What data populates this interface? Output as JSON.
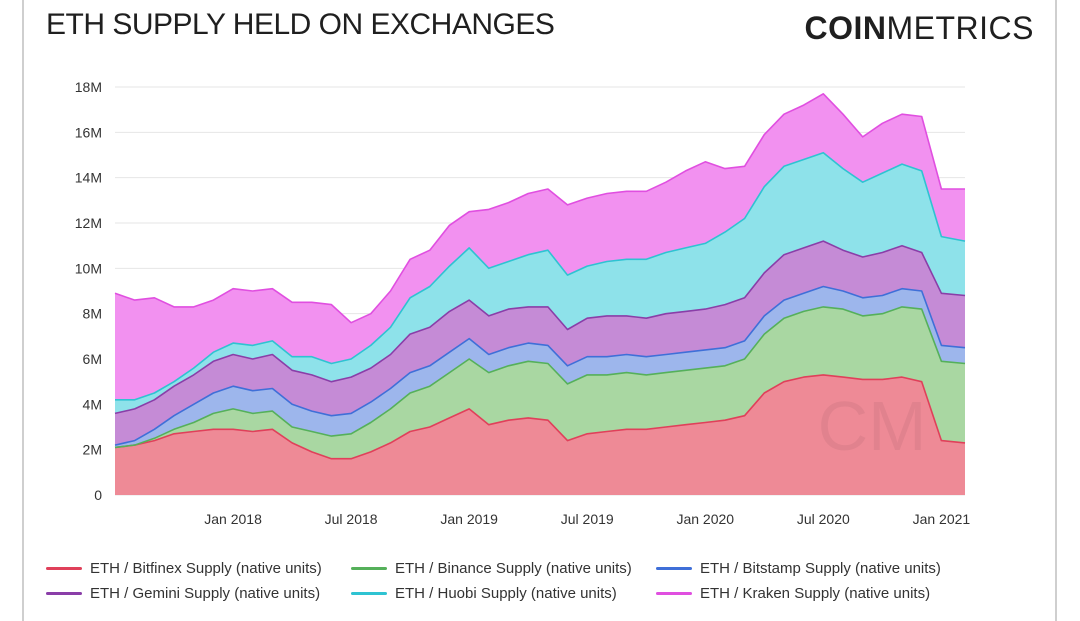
{
  "title": "ETH SUPPLY HELD ON EXCHANGES",
  "logo": {
    "bold": "COIN",
    "light": "METRICS"
  },
  "watermark": "CM",
  "chart_data": {
    "type": "area",
    "stacked": true,
    "title": "ETH SUPPLY HELD ON EXCHANGES",
    "xlabel": "",
    "ylabel": "",
    "ylim": [
      0,
      18
    ],
    "y_ticks": [
      "0",
      "2M",
      "4M",
      "6M",
      "8M",
      "10M",
      "12M",
      "14M",
      "16M",
      "18M"
    ],
    "x_tick_labels": [
      "Jan 2018",
      "Jul 2018",
      "Jan 2019",
      "Jul 2019",
      "Jan 2020",
      "Jul 2020",
      "Jan 2021"
    ],
    "x_tick_positions": [
      6,
      12,
      18,
      24,
      30,
      36,
      42
    ],
    "x_range": [
      0,
      43.2
    ],
    "x": [
      0,
      1,
      2,
      3,
      4,
      5,
      6,
      7,
      8,
      9,
      10,
      11,
      12,
      13,
      14,
      15,
      16,
      17,
      18,
      19,
      20,
      21,
      22,
      23,
      24,
      25,
      26,
      27,
      28,
      29,
      30,
      31,
      32,
      33,
      34,
      35,
      36,
      37,
      38,
      39,
      40,
      41,
      42,
      43.2
    ],
    "series": [
      {
        "name": "ETH / Bitfinex Supply (native units)",
        "color": "#e0405a",
        "fill": "#ee8a96",
        "values": [
          2.1,
          2.2,
          2.4,
          2.7,
          2.8,
          2.9,
          2.9,
          2.8,
          2.9,
          2.3,
          1.9,
          1.6,
          1.6,
          1.9,
          2.3,
          2.8,
          3.0,
          3.4,
          3.8,
          3.1,
          3.3,
          3.4,
          3.3,
          2.4,
          2.7,
          2.8,
          2.9,
          2.9,
          3.0,
          3.1,
          3.2,
          3.3,
          3.5,
          4.5,
          5.0,
          5.2,
          5.3,
          5.2,
          5.1,
          5.1,
          5.2,
          5.0,
          2.4,
          2.3
        ]
      },
      {
        "name": "ETH / Binance Supply (native units)",
        "color": "#55b05a",
        "fill": "#a9d7a2",
        "values": [
          0.0,
          0.0,
          0.1,
          0.2,
          0.4,
          0.7,
          0.9,
          0.8,
          0.8,
          0.7,
          0.9,
          1.0,
          1.1,
          1.3,
          1.5,
          1.7,
          1.8,
          2.0,
          2.2,
          2.3,
          2.4,
          2.5,
          2.5,
          2.5,
          2.6,
          2.5,
          2.5,
          2.4,
          2.4,
          2.4,
          2.4,
          2.4,
          2.5,
          2.6,
          2.8,
          2.9,
          3.0,
          3.0,
          2.8,
          2.9,
          3.1,
          3.2,
          3.5,
          3.5
        ]
      },
      {
        "name": "ETH / Bitstamp Supply (native units)",
        "color": "#3f6fd8",
        "fill": "#9db6ec",
        "values": [
          0.1,
          0.2,
          0.4,
          0.6,
          0.8,
          0.9,
          1.0,
          1.0,
          1.0,
          1.0,
          0.9,
          0.9,
          0.9,
          0.9,
          0.9,
          0.9,
          0.9,
          0.9,
          0.9,
          0.8,
          0.8,
          0.8,
          0.8,
          0.8,
          0.8,
          0.8,
          0.8,
          0.8,
          0.8,
          0.8,
          0.8,
          0.8,
          0.8,
          0.8,
          0.8,
          0.8,
          0.9,
          0.8,
          0.8,
          0.8,
          0.8,
          0.8,
          0.7,
          0.7
        ]
      },
      {
        "name": "ETH / Gemini Supply (native units)",
        "color": "#8a3ea8",
        "fill": "#c58bd6",
        "values": [
          1.4,
          1.4,
          1.3,
          1.3,
          1.3,
          1.4,
          1.4,
          1.4,
          1.5,
          1.5,
          1.6,
          1.5,
          1.6,
          1.5,
          1.5,
          1.7,
          1.7,
          1.8,
          1.7,
          1.7,
          1.7,
          1.6,
          1.7,
          1.6,
          1.7,
          1.8,
          1.7,
          1.7,
          1.8,
          1.8,
          1.8,
          1.9,
          1.9,
          1.9,
          2.0,
          2.0,
          2.0,
          1.8,
          1.8,
          1.9,
          1.9,
          1.7,
          2.3,
          2.3
        ]
      },
      {
        "name": "ETH / Huobi Supply (native units)",
        "color": "#2ec3d2",
        "fill": "#8ee2ea",
        "values": [
          0.6,
          0.4,
          0.3,
          0.2,
          0.3,
          0.4,
          0.5,
          0.6,
          0.6,
          0.6,
          0.8,
          0.8,
          0.8,
          1.0,
          1.2,
          1.6,
          1.8,
          2.0,
          2.3,
          2.1,
          2.1,
          2.3,
          2.5,
          2.4,
          2.3,
          2.4,
          2.5,
          2.6,
          2.7,
          2.8,
          2.9,
          3.2,
          3.5,
          3.8,
          3.9,
          3.9,
          3.9,
          3.6,
          3.3,
          3.5,
          3.6,
          3.6,
          2.5,
          2.4
        ]
      },
      {
        "name": "ETH / Kraken Supply (native units)",
        "color": "#e04fe0",
        "fill": "#f291f0",
        "values": [
          4.7,
          4.4,
          4.2,
          3.3,
          2.7,
          2.3,
          2.4,
          2.4,
          2.3,
          2.4,
          2.4,
          2.6,
          1.6,
          1.4,
          1.6,
          1.7,
          1.6,
          1.8,
          1.6,
          2.6,
          2.6,
          2.7,
          2.7,
          3.1,
          3.0,
          3.0,
          3.0,
          3.0,
          3.1,
          3.4,
          3.6,
          2.8,
          2.3,
          2.3,
          2.3,
          2.4,
          2.6,
          2.4,
          2.0,
          2.2,
          2.2,
          2.4,
          2.1,
          2.3
        ]
      }
    ]
  }
}
